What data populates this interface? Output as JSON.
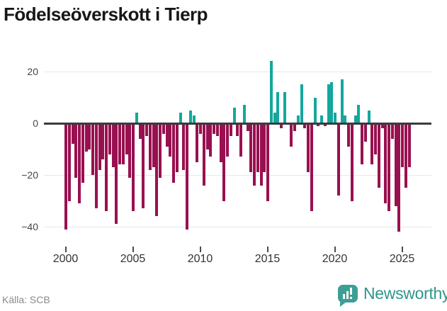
{
  "title": "Födelseöverskott i Tierp",
  "source": "Källa: SCB",
  "brand": {
    "name": "Newsworthy",
    "color": "#2f968c",
    "icon": "newsworthy-speech-bubble-bar-chart-icon"
  },
  "colors": {
    "positive": "#14a79d",
    "negative": "#991050",
    "axis": "#3b3b3b",
    "grid": "#e7e7e7",
    "tick_text": "#454545",
    "title_text": "#171717",
    "source_text": "#8a8a8a"
  },
  "chart_data": {
    "type": "bar",
    "title": "Födelseöverskott i Tierp",
    "frequency": "quarterly",
    "start": "2000Q1",
    "end": "2025Q3",
    "x_tick_labels": [
      "2000",
      "2005",
      "2010",
      "2015",
      "2020",
      "2025"
    ],
    "y_ticks": [
      20,
      0,
      -20,
      -40
    ],
    "y_tick_labels": [
      "20",
      "0",
      "−20",
      "−40"
    ],
    "ylim": [
      -47,
      26
    ],
    "grid": true,
    "legend": false,
    "series": [
      {
        "name": "Födelseöverskott",
        "values": [
          -41,
          -30,
          -8,
          -21,
          -31,
          -23,
          -11,
          -10,
          -20,
          -33,
          -18,
          -14,
          -34,
          -12,
          -17,
          -39,
          -16,
          -16,
          -12,
          -21,
          -34,
          4,
          -6,
          -33,
          -5,
          -18,
          -17,
          -36,
          -21,
          -4,
          -9,
          -13,
          -23,
          -19,
          4,
          -18,
          -41,
          5,
          3,
          -15,
          -4,
          -24,
          -10,
          -13,
          -4,
          -5,
          -15,
          -30,
          -13,
          -5,
          6,
          -5,
          -13,
          7,
          -3,
          -19,
          -24,
          -19,
          -24,
          -19,
          -30,
          24,
          4,
          12,
          -2,
          12,
          0,
          -9,
          -3,
          3,
          15,
          -2,
          -19,
          -34,
          10,
          -1,
          3,
          -1,
          15,
          16,
          4,
          -28,
          17,
          3,
          -9,
          -30,
          3,
          7,
          -16,
          -7,
          5,
          -16,
          -12,
          -25,
          -2,
          -31,
          -34,
          -6,
          -32,
          -42,
          -17,
          -25,
          -17
        ]
      }
    ],
    "positive_color": "#14a79d",
    "negative_color": "#991050"
  }
}
